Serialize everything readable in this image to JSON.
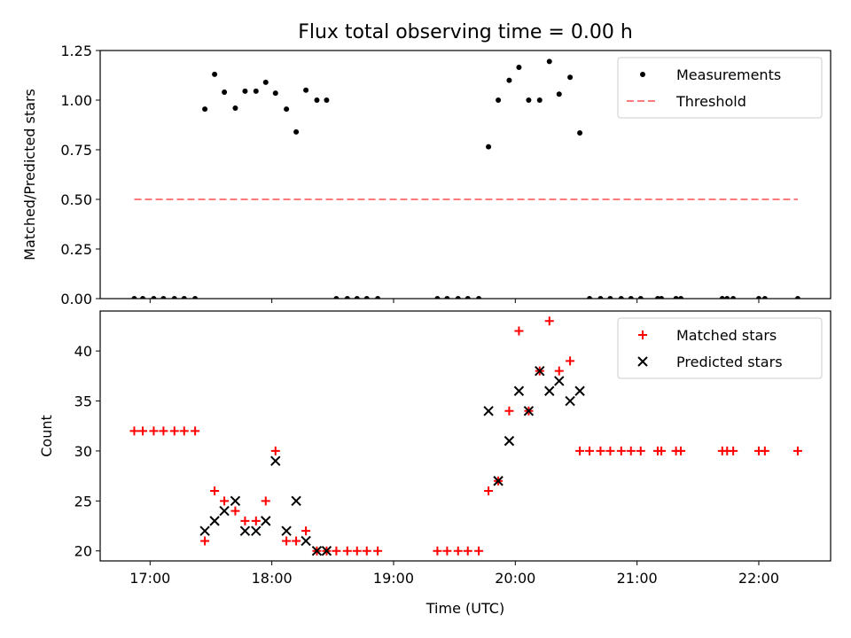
{
  "title": "Flux total observing time = 0.00 h",
  "chart_data": [
    {
      "type": "scatter",
      "ylabel": "Matched/Predicted stars",
      "ylim": [
        0,
        1.25
      ],
      "yticks": [
        "0.00",
        "0.25",
        "0.50",
        "0.75",
        "1.00",
        "1.25"
      ],
      "x_unit": "UTC hours",
      "xlim": [
        16.59,
        22.59
      ],
      "legend_position": "upper right",
      "series": [
        {
          "name": "Measurements",
          "marker": "dot",
          "color": "#000000",
          "x": [
            16.87,
            16.94,
            17.03,
            17.11,
            17.2,
            17.28,
            17.37,
            17.45,
            17.53,
            17.61,
            17.7,
            17.78,
            17.87,
            17.95,
            18.03,
            18.12,
            18.2,
            18.28,
            18.37,
            18.45,
            18.53,
            18.62,
            18.7,
            18.78,
            18.87,
            19.36,
            19.44,
            19.53,
            19.61,
            19.7,
            19.78,
            19.86,
            19.95,
            20.03,
            20.11,
            20.2,
            20.28,
            20.36,
            20.45,
            20.53,
            20.61,
            20.7,
            20.78,
            20.87,
            20.95,
            21.03,
            21.17,
            21.2,
            21.32,
            21.36,
            21.7,
            21.74,
            21.79,
            22.0,
            22.05,
            22.32
          ],
          "y": [
            0,
            0,
            0,
            0,
            0,
            0,
            0,
            0.955,
            1.13,
            1.04,
            0.96,
            1.045,
            1.045,
            1.09,
            1.035,
            0.955,
            0.84,
            1.05,
            1.0,
            1.0,
            0,
            0,
            0,
            0,
            0,
            0,
            0,
            0,
            0,
            0,
            0.765,
            1.0,
            1.1,
            1.165,
            1.0,
            1.0,
            1.195,
            1.03,
            1.115,
            0.835,
            0,
            0,
            0,
            0,
            0,
            0,
            0,
            0,
            0,
            0,
            0,
            0,
            0,
            0,
            0,
            0
          ]
        },
        {
          "name": "Threshold",
          "line": "dashed",
          "color": "#ff7b7b",
          "x": [
            16.87,
            22.32
          ],
          "y": [
            0.5,
            0.5
          ]
        }
      ]
    },
    {
      "type": "scatter",
      "xlabel": "Time (UTC)",
      "ylabel": "Count",
      "ylim": [
        19,
        44
      ],
      "yticks": [
        "20",
        "25",
        "30",
        "35",
        "40"
      ],
      "xticks": [
        "17:00",
        "18:00",
        "19:00",
        "20:00",
        "21:00",
        "22:00"
      ],
      "x_unit": "UTC hours",
      "xlim": [
        16.59,
        22.59
      ],
      "legend_position": "upper right",
      "series": [
        {
          "name": "Matched stars",
          "marker": "plus",
          "color": "#ff0000",
          "x": [
            16.87,
            16.94,
            17.03,
            17.11,
            17.2,
            17.28,
            17.37,
            17.45,
            17.53,
            17.61,
            17.7,
            17.78,
            17.87,
            17.95,
            18.03,
            18.12,
            18.2,
            18.28,
            18.37,
            18.45,
            18.53,
            18.62,
            18.7,
            18.78,
            18.87,
            19.36,
            19.44,
            19.53,
            19.61,
            19.7,
            19.78,
            19.86,
            19.95,
            20.03,
            20.11,
            20.2,
            20.28,
            20.36,
            20.45,
            20.53,
            20.61,
            20.7,
            20.78,
            20.87,
            20.95,
            21.03,
            21.17,
            21.2,
            21.32,
            21.36,
            21.7,
            21.74,
            21.79,
            22.0,
            22.05,
            22.32
          ],
          "y": [
            32,
            32,
            32,
            32,
            32,
            32,
            32,
            21,
            26,
            25,
            24,
            23,
            23,
            25,
            30,
            21,
            21,
            22,
            20,
            20,
            20,
            20,
            20,
            20,
            20,
            20,
            20,
            20,
            20,
            20,
            26,
            27,
            34,
            42,
            34,
            38,
            43,
            38,
            39,
            30,
            30,
            30,
            30,
            30,
            30,
            30,
            30,
            30,
            30,
            30,
            30,
            30,
            30,
            30,
            30,
            30
          ]
        },
        {
          "name": "Predicted stars",
          "marker": "x",
          "color": "#000000",
          "x": [
            17.45,
            17.53,
            17.61,
            17.7,
            17.78,
            17.87,
            17.95,
            18.03,
            18.12,
            18.2,
            18.28,
            18.37,
            18.45,
            19.78,
            19.86,
            19.95,
            20.03,
            20.11,
            20.2,
            20.28,
            20.36,
            20.45,
            20.53
          ],
          "y": [
            22,
            23,
            24,
            25,
            22,
            22,
            23,
            29,
            22,
            25,
            21,
            20,
            20,
            34,
            27,
            31,
            36,
            34,
            38,
            36,
            37,
            35,
            36
          ]
        }
      ]
    }
  ]
}
